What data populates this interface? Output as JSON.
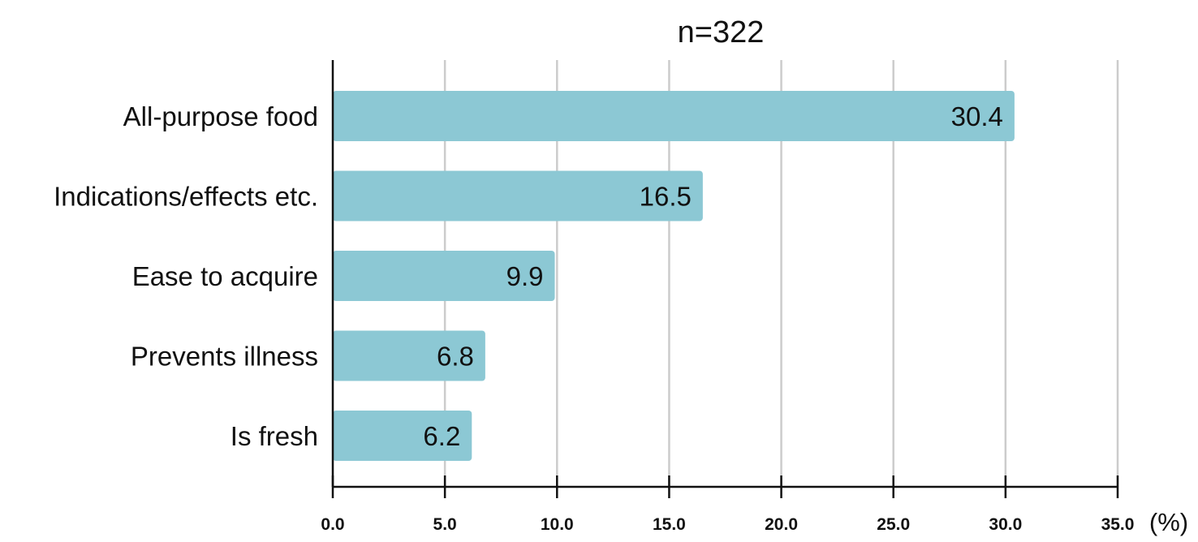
{
  "chart_data": {
    "type": "bar",
    "orientation": "horizontal",
    "title": "n=322",
    "categories": [
      "All-purpose food",
      "Indications/effects etc.",
      "Ease to acquire",
      "Prevents illness",
      "Is fresh"
    ],
    "values": [
      30.4,
      16.5,
      9.9,
      6.8,
      6.2
    ],
    "value_labels": [
      "30.4",
      "16.5",
      "9.9",
      "6.8",
      "6.2"
    ],
    "xlabel": "",
    "ylabel": "",
    "x_unit": "(%)",
    "xlim": [
      0,
      35
    ],
    "x_ticks": [
      0,
      5,
      10,
      15,
      20,
      25,
      30,
      35
    ],
    "x_tick_labels": [
      "0.0",
      "5.0",
      "10.0",
      "15.0",
      "20.0",
      "25.0",
      "30.0",
      "35.0"
    ],
    "grid": "vertical",
    "legend": "none",
    "colors": {
      "bar": "#8cc8d4",
      "grid": "#cccccc",
      "axis": "#111111",
      "text": "#111111"
    }
  }
}
